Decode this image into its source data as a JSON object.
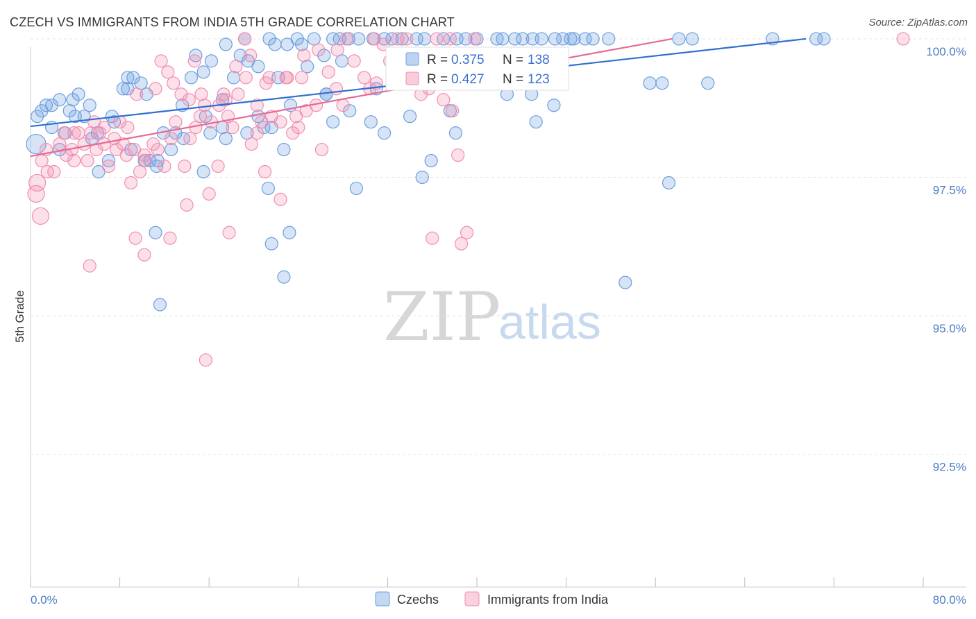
{
  "title": "CZECH VS IMMIGRANTS FROM INDIA 5TH GRADE CORRELATION CHART",
  "source": "Source: ZipAtlas.com",
  "watermark": {
    "zip": "ZIP",
    "atlas": "atlas"
  },
  "colors": {
    "czech": "#6b9ee0",
    "india": "#f28db0",
    "czech_line": "#2f6fd0",
    "india_line": "#e66a96"
  },
  "chart_data": {
    "type": "scatter",
    "xlabel": "",
    "ylabel": "5th Grade",
    "xlim": [
      0,
      80
    ],
    "ylim": [
      90.1,
      100.2
    ],
    "x_tick_labels": [
      "0.0%",
      "80.0%"
    ],
    "y_ticks": [
      92.5,
      95.0,
      97.5,
      100.0
    ],
    "y_tick_labels": [
      "92.5%",
      "95.0%",
      "97.5%",
      "100.0%"
    ],
    "grid": true,
    "legend": {
      "position": "top-center",
      "bottom_items": [
        "Czechs",
        "Immigrants from India"
      ]
    },
    "stats": [
      {
        "series": "Czechs",
        "r_label": "R =",
        "r": "0.375",
        "n_label": "N =",
        "n": "138"
      },
      {
        "series": "Immigrants from India",
        "r_label": "R =",
        "r": "0.427",
        "n_label": "N =",
        "n": "123"
      }
    ],
    "series": [
      {
        "name": "Czechs",
        "trend": {
          "x": [
            0,
            69.5
          ],
          "y": [
            98.42,
            100.0
          ]
        },
        "points": [
          [
            0.5,
            98.1
          ],
          [
            0.6,
            98.6
          ],
          [
            1.0,
            98.7
          ],
          [
            1.4,
            98.8
          ],
          [
            1.9,
            98.8
          ],
          [
            2.6,
            98.9
          ],
          [
            1.9,
            98.4
          ],
          [
            3.5,
            98.7
          ],
          [
            3.8,
            98.9
          ],
          [
            4.3,
            99.0
          ],
          [
            4.8,
            98.6
          ],
          [
            5.3,
            98.8
          ],
          [
            2.6,
            98.0
          ],
          [
            3.1,
            98.3
          ],
          [
            4.0,
            98.6
          ],
          [
            6.0,
            98.3
          ],
          [
            7.3,
            98.6
          ],
          [
            8.3,
            99.1
          ],
          [
            8.7,
            99.3
          ],
          [
            9.2,
            99.3
          ],
          [
            9.9,
            99.2
          ],
          [
            10.4,
            99.0
          ],
          [
            11.9,
            98.3
          ],
          [
            12.6,
            98.0
          ],
          [
            13.6,
            98.8
          ],
          [
            14.4,
            99.3
          ],
          [
            14.8,
            99.7
          ],
          [
            15.5,
            99.4
          ],
          [
            16.2,
            99.6
          ],
          [
            16.1,
            98.3
          ],
          [
            17.2,
            98.9
          ],
          [
            17.5,
            99.9
          ],
          [
            18.2,
            99.3
          ],
          [
            18.8,
            99.7
          ],
          [
            19.2,
            100.0
          ],
          [
            19.5,
            99.6
          ],
          [
            20.4,
            99.5
          ],
          [
            20.9,
            98.4
          ],
          [
            21.4,
            100.0
          ],
          [
            21.9,
            99.9
          ],
          [
            22.2,
            99.3
          ],
          [
            23.0,
            99.9
          ],
          [
            23.9,
            100.0
          ],
          [
            24.3,
            99.9
          ],
          [
            24.8,
            99.5
          ],
          [
            25.4,
            100.0
          ],
          [
            26.3,
            99.7
          ],
          [
            27.1,
            100.0
          ],
          [
            27.9,
            99.6
          ],
          [
            28.5,
            100.0
          ],
          [
            29.4,
            100.0
          ],
          [
            30.7,
            100.0
          ],
          [
            31.0,
            99.1
          ],
          [
            31.7,
            100.0
          ],
          [
            32.4,
            100.0
          ],
          [
            33.3,
            100.0
          ],
          [
            33.6,
            99.4
          ],
          [
            34.6,
            100.0
          ],
          [
            35.3,
            100.0
          ],
          [
            36.2,
            99.5
          ],
          [
            37.0,
            100.0
          ],
          [
            38.2,
            100.0
          ],
          [
            39.0,
            100.0
          ],
          [
            40.0,
            100.0
          ],
          [
            40.6,
            99.3
          ],
          [
            41.8,
            100.0
          ],
          [
            42.3,
            100.0
          ],
          [
            43.4,
            100.0
          ],
          [
            44.1,
            100.0
          ],
          [
            45.0,
            100.0
          ],
          [
            45.8,
            100.0
          ],
          [
            47.0,
            100.0
          ],
          [
            47.7,
            100.0
          ],
          [
            48.4,
            100.0
          ],
          [
            50.4,
            100.0
          ],
          [
            6.1,
            97.6
          ],
          [
            7.0,
            97.8
          ],
          [
            10.2,
            97.8
          ],
          [
            11.4,
            97.8
          ],
          [
            13.0,
            98.3
          ],
          [
            15.5,
            97.6
          ],
          [
            19.4,
            98.3
          ],
          [
            21.3,
            97.3
          ],
          [
            22.7,
            98.0
          ],
          [
            26.5,
            99.0
          ],
          [
            27.1,
            98.5
          ],
          [
            28.6,
            98.7
          ],
          [
            29.2,
            97.3
          ],
          [
            30.5,
            98.5
          ],
          [
            31.7,
            98.3
          ],
          [
            34.0,
            98.6
          ],
          [
            35.1,
            97.5
          ],
          [
            35.9,
            97.8
          ],
          [
            37.6,
            98.7
          ],
          [
            38.1,
            98.3
          ],
          [
            40.8,
            99.3
          ],
          [
            42.7,
            99.0
          ],
          [
            44.9,
            99.0
          ],
          [
            45.3,
            98.5
          ],
          [
            46.9,
            98.8
          ],
          [
            48.7,
            100.0
          ],
          [
            49.7,
            100.0
          ],
          [
            51.8,
            100.0
          ],
          [
            55.5,
            99.2
          ],
          [
            57.2,
            97.4
          ],
          [
            60.7,
            99.2
          ],
          [
            66.5,
            100.0
          ],
          [
            70.4,
            100.0
          ],
          [
            71.1,
            100.0
          ],
          [
            59.3,
            100.0
          ],
          [
            58.1,
            100.0
          ],
          [
            5.5,
            98.2
          ],
          [
            7.5,
            98.5
          ],
          [
            9.0,
            98.0
          ],
          [
            11.3,
            97.7
          ],
          [
            13.7,
            98.2
          ],
          [
            17.5,
            98.2
          ],
          [
            20.4,
            98.6
          ],
          [
            21.6,
            98.4
          ],
          [
            23.3,
            98.8
          ],
          [
            26.5,
            99.0
          ],
          [
            8.7,
            99.1
          ],
          [
            10.7,
            97.8
          ],
          [
            11.2,
            96.5
          ],
          [
            11.6,
            95.2
          ],
          [
            15.7,
            98.6
          ],
          [
            17.2,
            98.4
          ],
          [
            21.6,
            96.3
          ],
          [
            22.7,
            95.7
          ],
          [
            23.2,
            96.5
          ],
          [
            53.3,
            95.6
          ],
          [
            56.6,
            99.2
          ],
          [
            27.7,
            100.0
          ]
        ]
      },
      {
        "name": "Immigrants from India",
        "trend": {
          "x": [
            0,
            57.5
          ],
          "y": [
            97.88,
            100.0
          ]
        },
        "points": [
          [
            0.5,
            97.2
          ],
          [
            0.6,
            97.4
          ],
          [
            0.9,
            96.8
          ],
          [
            1.0,
            97.8
          ],
          [
            1.4,
            98.0
          ],
          [
            1.5,
            97.6
          ],
          [
            2.1,
            97.6
          ],
          [
            2.6,
            98.1
          ],
          [
            3.0,
            98.3
          ],
          [
            3.2,
            97.9
          ],
          [
            3.7,
            98.0
          ],
          [
            3.9,
            97.8
          ],
          [
            4.3,
            98.3
          ],
          [
            4.8,
            98.1
          ],
          [
            5.4,
            98.3
          ],
          [
            5.9,
            98.0
          ],
          [
            6.2,
            98.3
          ],
          [
            6.6,
            98.4
          ],
          [
            7.0,
            97.7
          ],
          [
            7.7,
            98.0
          ],
          [
            8.3,
            98.1
          ],
          [
            8.7,
            98.4
          ],
          [
            9.3,
            98.0
          ],
          [
            9.8,
            97.6
          ],
          [
            10.3,
            97.8
          ],
          [
            11.0,
            98.1
          ],
          [
            11.4,
            98.0
          ],
          [
            12.0,
            97.7
          ],
          [
            12.6,
            98.2
          ],
          [
            13.0,
            98.5
          ],
          [
            13.8,
            97.7
          ],
          [
            14.3,
            98.2
          ],
          [
            14.8,
            98.4
          ],
          [
            15.2,
            98.6
          ],
          [
            15.6,
            98.8
          ],
          [
            16.2,
            98.5
          ],
          [
            16.9,
            98.8
          ],
          [
            17.3,
            99.0
          ],
          [
            17.7,
            98.6
          ],
          [
            18.1,
            98.4
          ],
          [
            18.6,
            99.0
          ],
          [
            19.3,
            99.3
          ],
          [
            19.8,
            98.1
          ],
          [
            20.3,
            98.3
          ],
          [
            20.7,
            98.5
          ],
          [
            21.1,
            99.2
          ],
          [
            21.6,
            98.6
          ],
          [
            22.4,
            98.5
          ],
          [
            23.0,
            99.3
          ],
          [
            23.5,
            98.3
          ],
          [
            24.0,
            98.4
          ],
          [
            24.3,
            99.3
          ],
          [
            24.7,
            98.7
          ],
          [
            25.6,
            98.8
          ],
          [
            26.1,
            98.0
          ],
          [
            26.7,
            99.4
          ],
          [
            27.4,
            99.1
          ],
          [
            28.0,
            98.8
          ],
          [
            29.0,
            99.6
          ],
          [
            29.9,
            99.3
          ],
          [
            30.4,
            99.1
          ],
          [
            31.0,
            99.2
          ],
          [
            31.6,
            99.9
          ],
          [
            32.2,
            99.6
          ],
          [
            32.9,
            100.0
          ],
          [
            33.4,
            99.2
          ],
          [
            34.0,
            99.5
          ],
          [
            35.0,
            99.0
          ],
          [
            35.7,
            99.1
          ],
          [
            36.9,
            99.2
          ],
          [
            37.8,
            98.7
          ],
          [
            38.3,
            97.9
          ],
          [
            39.1,
            96.5
          ],
          [
            36.0,
            96.4
          ],
          [
            37.0,
            98.9
          ],
          [
            38.6,
            96.3
          ],
          [
            3.9,
            98.3
          ],
          [
            5.1,
            97.8
          ],
          [
            5.7,
            98.5
          ],
          [
            6.6,
            98.1
          ],
          [
            7.5,
            98.2
          ],
          [
            8.0,
            98.5
          ],
          [
            8.6,
            97.9
          ],
          [
            9.0,
            97.4
          ],
          [
            9.5,
            99.0
          ],
          [
            10.2,
            97.9
          ],
          [
            11.2,
            99.1
          ],
          [
            11.7,
            99.6
          ],
          [
            12.3,
            99.4
          ],
          [
            12.8,
            99.2
          ],
          [
            13.5,
            99.0
          ],
          [
            14.2,
            98.9
          ],
          [
            14.7,
            99.6
          ],
          [
            15.3,
            99.0
          ],
          [
            16.0,
            97.2
          ],
          [
            16.8,
            97.7
          ],
          [
            17.5,
            98.9
          ],
          [
            18.4,
            99.5
          ],
          [
            19.2,
            100.0
          ],
          [
            19.7,
            99.7
          ],
          [
            20.3,
            98.8
          ],
          [
            21.0,
            97.6
          ],
          [
            21.4,
            99.3
          ],
          [
            22.4,
            97.1
          ],
          [
            22.9,
            99.3
          ],
          [
            23.8,
            98.6
          ],
          [
            24.5,
            99.7
          ],
          [
            25.8,
            99.8
          ],
          [
            27.5,
            99.8
          ],
          [
            28.3,
            100.0
          ],
          [
            30.8,
            100.0
          ],
          [
            33.7,
            100.0
          ],
          [
            36.4,
            100.0
          ],
          [
            37.6,
            100.0
          ],
          [
            39.8,
            100.0
          ],
          [
            78.2,
            100.0
          ],
          [
            9.4,
            96.4
          ],
          [
            10.2,
            96.1
          ],
          [
            12.5,
            96.4
          ],
          [
            14.0,
            97.0
          ],
          [
            15.7,
            94.2
          ],
          [
            17.8,
            96.5
          ],
          [
            5.3,
            95.9
          ]
        ]
      }
    ]
  }
}
